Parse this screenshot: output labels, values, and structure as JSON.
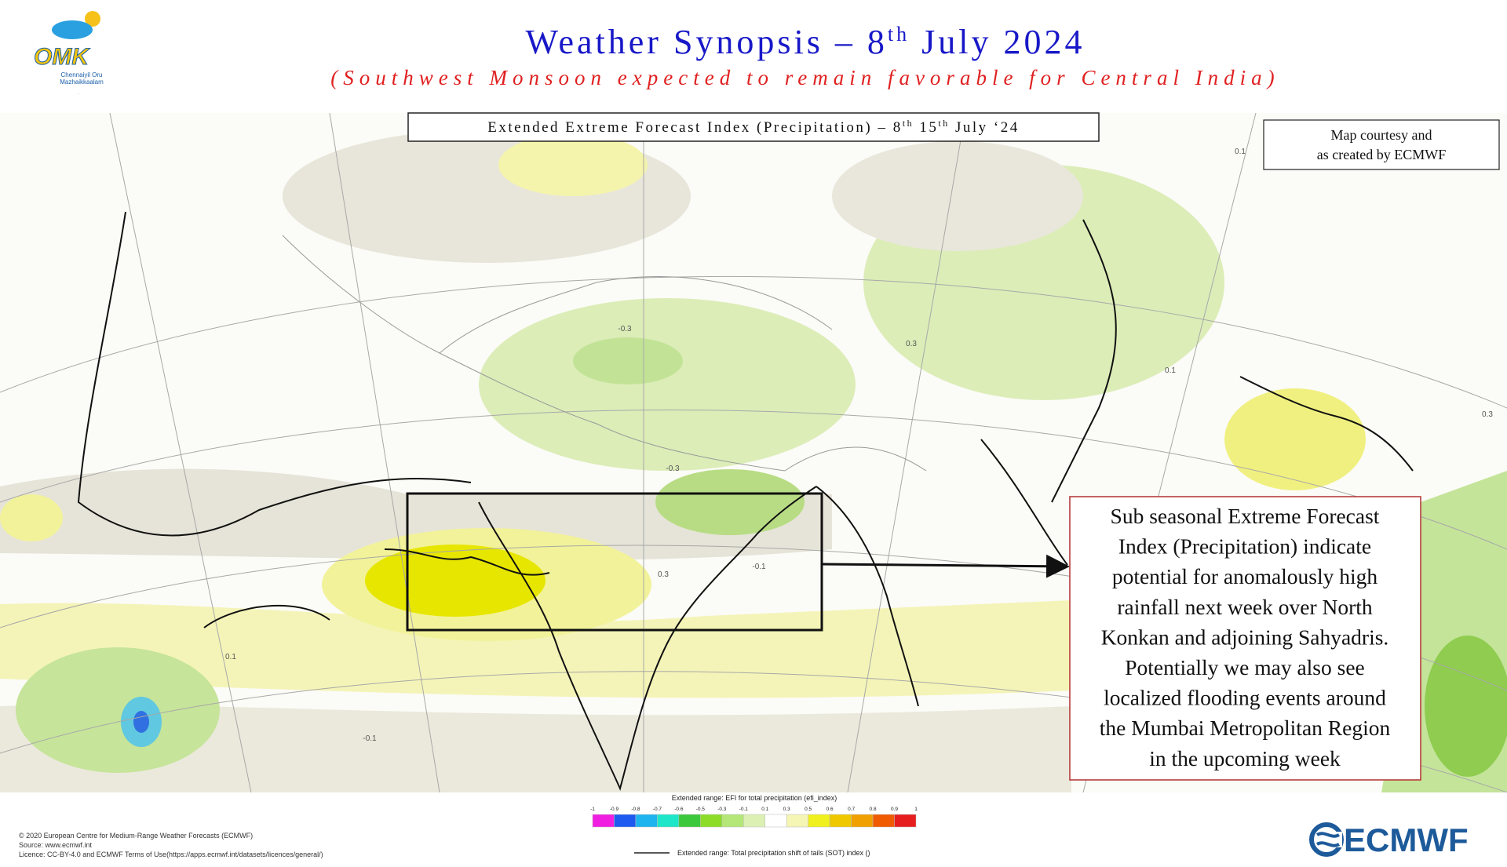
{
  "header": {
    "logo_text": "OMK",
    "logo_caption": [
      "Chennaiyil Oru",
      "Mazhaikkaalam"
    ],
    "title": [
      "Weather Synopsis – 8",
      "th",
      " July 2024"
    ],
    "subtitle": "(Southwest Monsoon expected to remain favorable for Central India)"
  },
  "map": {
    "panel_title": [
      "Extended Extreme Forecast Index (Precipitation) – 8",
      "th",
      " 15",
      "th",
      " July ‘24"
    ],
    "courtesy": [
      "Map courtesy and",
      "as created by ECMWF"
    ],
    "contour_labels": [
      "0.1",
      "-0.3",
      "-0.3",
      "0.3",
      "-0.1",
      "0.1",
      "-0.1",
      "0.1",
      "0.3",
      "0.3"
    ],
    "callout": [
      "Sub seasonal Extreme Forecast",
      "Index (Precipitation) indicate",
      "potential for anomalously high",
      "rainfall next week over North",
      "Konkan and adjoining Sahyadris.",
      "Potentially we may also see",
      "localized flooding events around",
      "the Mumbai Metropolitan Region",
      "in the upcoming week"
    ]
  },
  "legend": {
    "title": "Extended range: EFI for total precipitation (efi_index)",
    "ticks": [
      "-1",
      "-0.9",
      "-0.8",
      "-0.7",
      "-0.6",
      "-0.5",
      "-0.3",
      "-0.1",
      "0.1",
      "0.3",
      "0.5",
      "0.6",
      "0.7",
      "0.8",
      "0.9",
      "1"
    ],
    "colors": [
      "#f01ee0",
      "#1e5af0",
      "#1eb4f0",
      "#1ee6c8",
      "#3cc83c",
      "#8cdc28",
      "#b4e678",
      "#dcf0b4",
      "#ffffff",
      "#f5f5b4",
      "#f0f01e",
      "#f0c800",
      "#f0a000",
      "#f05a00",
      "#e61e1e"
    ],
    "line_label": "Extended range: Total precipitation shift of tails (SOT) index ()"
  },
  "footer": {
    "credits": [
      "© 2020 European Centre for Medium-Range Weather Forecasts (ECMWF)",
      "Source: www.ecmwf.int",
      "Licence: CC-BY-4.0 and ECMWF Terms of Use(https://apps.ecmwf.int/datasets/licences/general/)"
    ],
    "brand": "ECMWF"
  }
}
